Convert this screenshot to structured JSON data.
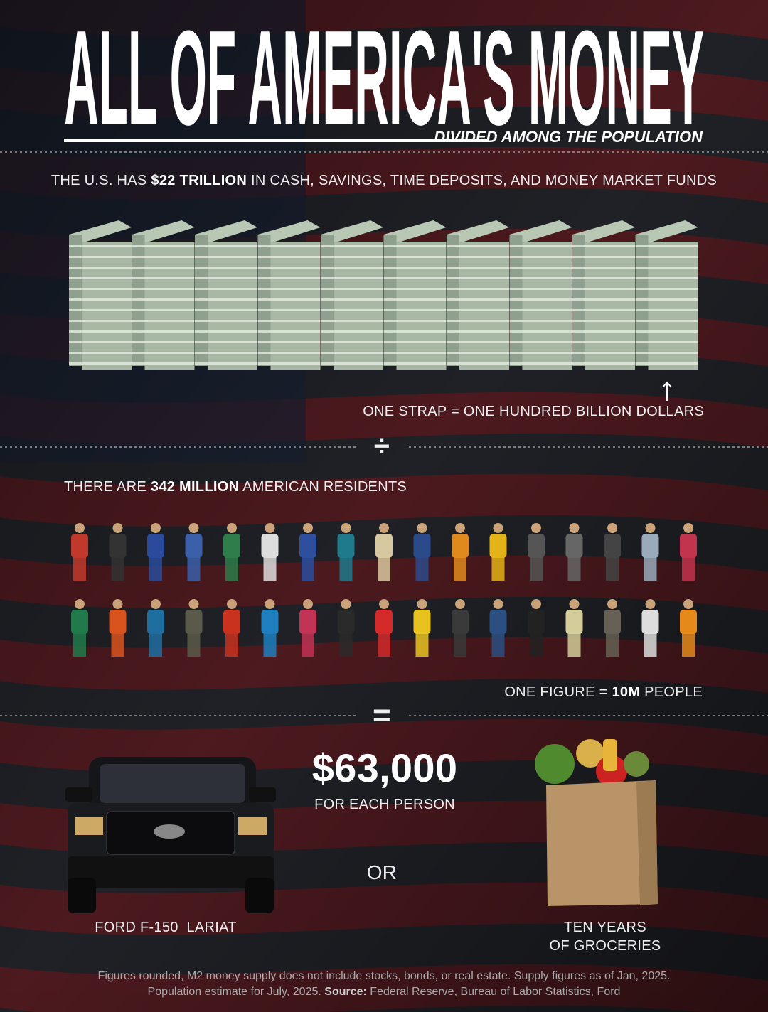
{
  "header": {
    "title": "ALL OF AMERICA'S MONEY",
    "subtitle": "DIVIDED AMONG THE POPULATION"
  },
  "money": {
    "before": "THE U.S. HAS ",
    "bold": "$22 TRILLION",
    "after": " IN CASH, SAVINGS, TIME DEPOSITS, AND MONEY MARKET FUNDS",
    "note": "ONE STRAP = ONE HUNDRED BILLION DOLLARS"
  },
  "divide_sign": "÷",
  "population": {
    "before": "THERE ARE ",
    "bold": "342 MILLION",
    "after": " AMERICAN RESIDENTS",
    "note_before": "ONE FIGURE = ",
    "note_bold": "10M",
    "note_after": " PEOPLE"
  },
  "equals_sign": "=",
  "result": {
    "amount": "$63,000",
    "caption": "FOR EACH PERSON",
    "or": "OR",
    "truck": "FORD F-150  LARIAT",
    "groceries": [
      "TEN YEARS",
      "OF GROCERIES"
    ]
  },
  "footnote": {
    "text": "Figures rounded, M2 money supply does not include stocks, bonds, or real estate. Supply figures as of Jan, 2025. Population estimate for July, 2025. ",
    "source_label": "Source:",
    "source": " Federal Reserve, Bureau of Labor Statistics, Ford"
  }
}
